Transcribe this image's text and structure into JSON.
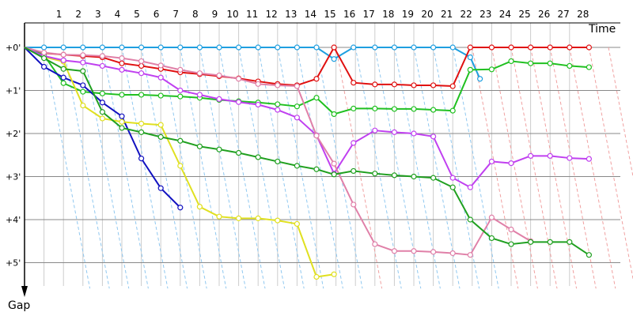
{
  "chart_data": {
    "type": "line",
    "xlabel": "Time",
    "ylabel": "Gap",
    "x_ticks": [
      "1",
      "2",
      "3",
      "4",
      "5",
      "6",
      "7",
      "8",
      "9",
      "10",
      "11",
      "12",
      "13",
      "14",
      "15",
      "16",
      "17",
      "18",
      "19",
      "20",
      "21",
      "22",
      "23",
      "24",
      "25",
      "26",
      "27",
      "28"
    ],
    "y_ticks": [
      "+0'",
      "+1'",
      "+2'",
      "+3'",
      "+4'",
      "+5'"
    ],
    "xlim": [
      0,
      29.4
    ],
    "ylim": [
      0,
      5.8
    ],
    "grid": true,
    "series": [
      {
        "color": "#1f9fe0",
        "points": [
          [
            0,
            0
          ],
          [
            1,
            0
          ],
          [
            2,
            0
          ],
          [
            3,
            0
          ],
          [
            4,
            0
          ],
          [
            5,
            0
          ],
          [
            6,
            0
          ],
          [
            7,
            0
          ],
          [
            8,
            0
          ],
          [
            9,
            0
          ],
          [
            10,
            0
          ],
          [
            11,
            0
          ],
          [
            12,
            0
          ],
          [
            13,
            0
          ],
          [
            14,
            0
          ],
          [
            15,
            0
          ],
          [
            15.9,
            0.27
          ],
          [
            16.9,
            0
          ],
          [
            18,
            0
          ],
          [
            19,
            0
          ],
          [
            20,
            0
          ],
          [
            21,
            0
          ],
          [
            22,
            0
          ],
          [
            22.9,
            0.23
          ],
          [
            23.4,
            0.73
          ]
        ]
      },
      {
        "color": "#e01010",
        "points": [
          [
            0,
            0
          ],
          [
            1,
            0.13
          ],
          [
            2,
            0.17
          ],
          [
            3,
            0.2
          ],
          [
            4,
            0.23
          ],
          [
            5,
            0.37
          ],
          [
            6,
            0.43
          ],
          [
            7,
            0.5
          ],
          [
            8,
            0.58
          ],
          [
            9,
            0.62
          ],
          [
            10,
            0.67
          ],
          [
            11,
            0.72
          ],
          [
            12,
            0.79
          ],
          [
            13,
            0.85
          ],
          [
            14,
            0.88
          ],
          [
            15,
            0.73
          ],
          [
            15.9,
            0
          ],
          [
            16.9,
            0.82
          ],
          [
            18,
            0.86
          ],
          [
            19,
            0.86
          ],
          [
            20,
            0.88
          ],
          [
            21,
            0.88
          ],
          [
            22,
            0.9
          ],
          [
            22.9,
            0
          ],
          [
            24,
            0
          ],
          [
            25,
            0
          ],
          [
            26,
            0
          ],
          [
            27,
            0
          ],
          [
            28,
            0
          ],
          [
            29,
            0
          ]
        ]
      },
      {
        "color": "#20c020",
        "points": [
          [
            0,
            0
          ],
          [
            1,
            0.18
          ],
          [
            2,
            0.83
          ],
          [
            3,
            1.03
          ],
          [
            4,
            1.07
          ],
          [
            5,
            1.1
          ],
          [
            6,
            1.1
          ],
          [
            7,
            1.12
          ],
          [
            8,
            1.14
          ],
          [
            9,
            1.17
          ],
          [
            10,
            1.22
          ],
          [
            11,
            1.25
          ],
          [
            12,
            1.28
          ],
          [
            13,
            1.32
          ],
          [
            14,
            1.37
          ],
          [
            15,
            1.17
          ],
          [
            15.9,
            1.55
          ],
          [
            16.9,
            1.42
          ],
          [
            18,
            1.42
          ],
          [
            19,
            1.43
          ],
          [
            20,
            1.43
          ],
          [
            21,
            1.45
          ],
          [
            22,
            1.47
          ],
          [
            22.9,
            0.52
          ],
          [
            24,
            0.51
          ],
          [
            25,
            0.32
          ],
          [
            26,
            0.37
          ],
          [
            27,
            0.37
          ],
          [
            28,
            0.43
          ],
          [
            29,
            0.46
          ]
        ]
      },
      {
        "color": "#1010c0",
        "points": [
          [
            0,
            0
          ],
          [
            1,
            0.45
          ],
          [
            2,
            0.7
          ],
          [
            3,
            0.88
          ],
          [
            4,
            1.28
          ],
          [
            5,
            1.6
          ],
          [
            6,
            2.58
          ],
          [
            7,
            3.27
          ],
          [
            8,
            3.72
          ]
        ]
      },
      {
        "color": "#e0e020",
        "points": [
          [
            0,
            0
          ],
          [
            1,
            0.22
          ],
          [
            2,
            0.33
          ],
          [
            3,
            1.35
          ],
          [
            4,
            1.65
          ],
          [
            5,
            1.73
          ],
          [
            6,
            1.77
          ],
          [
            7,
            1.8
          ],
          [
            8,
            2.75
          ],
          [
            9,
            3.7
          ],
          [
            10,
            3.93
          ],
          [
            11,
            3.97
          ],
          [
            12,
            3.97
          ],
          [
            13,
            4.02
          ],
          [
            14,
            4.1
          ],
          [
            15,
            5.33
          ],
          [
            15.9,
            5.27
          ]
        ]
      },
      {
        "color": "#c040f0",
        "points": [
          [
            0,
            0
          ],
          [
            1,
            0.2
          ],
          [
            2,
            0.3
          ],
          [
            3,
            0.35
          ],
          [
            4,
            0.43
          ],
          [
            5,
            0.52
          ],
          [
            6,
            0.6
          ],
          [
            7,
            0.7
          ],
          [
            8,
            1.0
          ],
          [
            9,
            1.1
          ],
          [
            10,
            1.2
          ],
          [
            11,
            1.27
          ],
          [
            12,
            1.33
          ],
          [
            13,
            1.45
          ],
          [
            14,
            1.63
          ],
          [
            15,
            2.04
          ],
          [
            15.9,
            2.93
          ],
          [
            16.9,
            2.22
          ],
          [
            18,
            1.93
          ],
          [
            19,
            1.97
          ],
          [
            20,
            2.0
          ],
          [
            21,
            2.07
          ],
          [
            22,
            3.03
          ],
          [
            22.9,
            3.25
          ],
          [
            24,
            2.65
          ],
          [
            25,
            2.69
          ],
          [
            26,
            2.52
          ],
          [
            27,
            2.52
          ],
          [
            28,
            2.57
          ],
          [
            29,
            2.59
          ]
        ]
      },
      {
        "color": "#e080a8",
        "points": [
          [
            0,
            0
          ],
          [
            1,
            0.12
          ],
          [
            2,
            0.17
          ],
          [
            3,
            0.18
          ],
          [
            4,
            0.2
          ],
          [
            5,
            0.25
          ],
          [
            6,
            0.32
          ],
          [
            7,
            0.42
          ],
          [
            8,
            0.52
          ],
          [
            9,
            0.6
          ],
          [
            10,
            0.65
          ],
          [
            11,
            0.73
          ],
          [
            12,
            0.85
          ],
          [
            13,
            0.88
          ],
          [
            14,
            0.9
          ],
          [
            15,
            2.05
          ],
          [
            15.9,
            2.7
          ],
          [
            16.9,
            3.65
          ],
          [
            18,
            4.57
          ],
          [
            19,
            4.73
          ],
          [
            20,
            4.73
          ],
          [
            21,
            4.75
          ],
          [
            22,
            4.78
          ],
          [
            22.9,
            4.82
          ],
          [
            24,
            3.95
          ],
          [
            25,
            4.23
          ],
          [
            26,
            4.5
          ]
        ]
      },
      {
        "color": "#20a020",
        "points": [
          [
            0,
            0
          ],
          [
            1,
            0.25
          ],
          [
            2,
            0.5
          ],
          [
            3,
            0.55
          ],
          [
            4,
            1.5
          ],
          [
            5,
            1.87
          ],
          [
            6,
            1.97
          ],
          [
            7,
            2.08
          ],
          [
            8,
            2.17
          ],
          [
            9,
            2.3
          ],
          [
            10,
            2.37
          ],
          [
            11,
            2.45
          ],
          [
            12,
            2.55
          ],
          [
            13,
            2.65
          ],
          [
            14,
            2.75
          ],
          [
            15,
            2.83
          ],
          [
            15.9,
            2.95
          ],
          [
            16.9,
            2.87
          ],
          [
            18,
            2.93
          ],
          [
            19,
            2.97
          ],
          [
            20,
            3.0
          ],
          [
            21,
            3.03
          ],
          [
            22,
            3.25
          ],
          [
            22.9,
            4.0
          ],
          [
            24,
            4.43
          ],
          [
            25,
            4.57
          ],
          [
            26,
            4.52
          ],
          [
            27,
            4.52
          ],
          [
            28,
            4.52
          ],
          [
            29,
            4.82
          ]
        ]
      }
    ]
  }
}
